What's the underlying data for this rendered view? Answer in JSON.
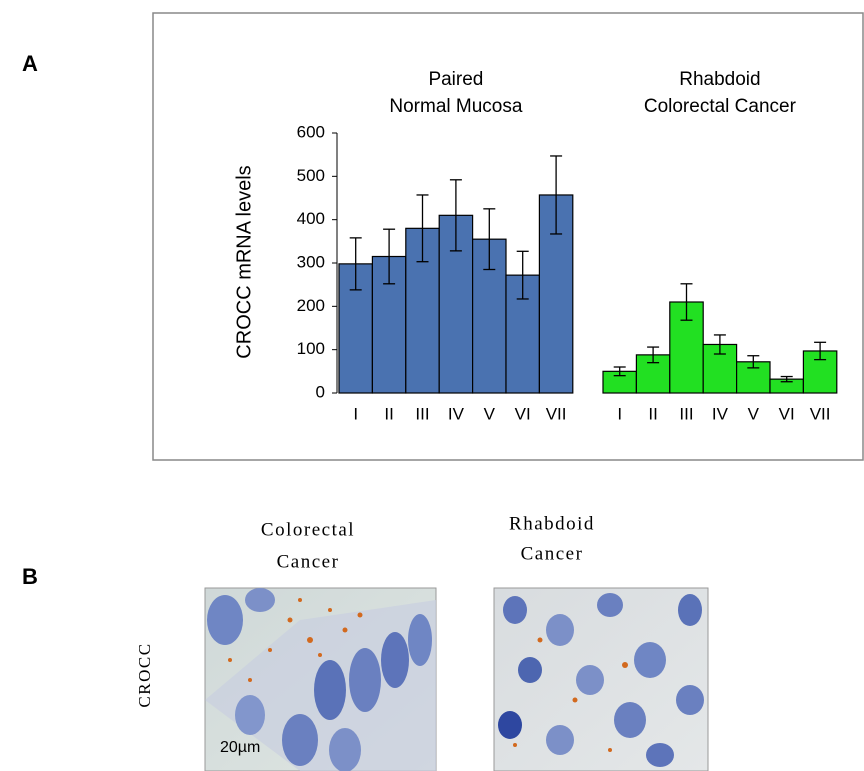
{
  "panel_a": {
    "letter": "A"
  },
  "chart_data": {
    "type": "bar",
    "y_label": "CROCC mRNA levels",
    "ylim": [
      0,
      600
    ],
    "yticks": [
      0,
      100,
      200,
      300,
      400,
      500,
      600
    ],
    "groups": [
      {
        "label": [
          "Paired",
          "Normal Mucosa"
        ],
        "color": "#4a72b0",
        "categories": [
          "I",
          "II",
          "III",
          "IV",
          "V",
          "VI",
          "VII"
        ],
        "values": [
          298,
          315,
          380,
          410,
          355,
          272,
          457
        ],
        "errors": [
          60,
          63,
          77,
          82,
          70,
          55,
          90
        ]
      },
      {
        "label": [
          "Rhabdoid",
          "Colorectal Cancer"
        ],
        "color": "#22e022",
        "categories": [
          "I",
          "II",
          "III",
          "IV",
          "V",
          "VI",
          "VII"
        ],
        "values": [
          50,
          88,
          210,
          112,
          72,
          32,
          97
        ],
        "errors": [
          10,
          18,
          42,
          22,
          14,
          6,
          20
        ]
      }
    ]
  },
  "panel_b": {
    "letter": "B",
    "row_label": "CROCC",
    "images": [
      {
        "title": [
          "Colorectal",
          "Cancer"
        ],
        "scale_bar": "20µm"
      },
      {
        "title": [
          "Rhabdoid",
          "Cancer"
        ]
      }
    ]
  }
}
